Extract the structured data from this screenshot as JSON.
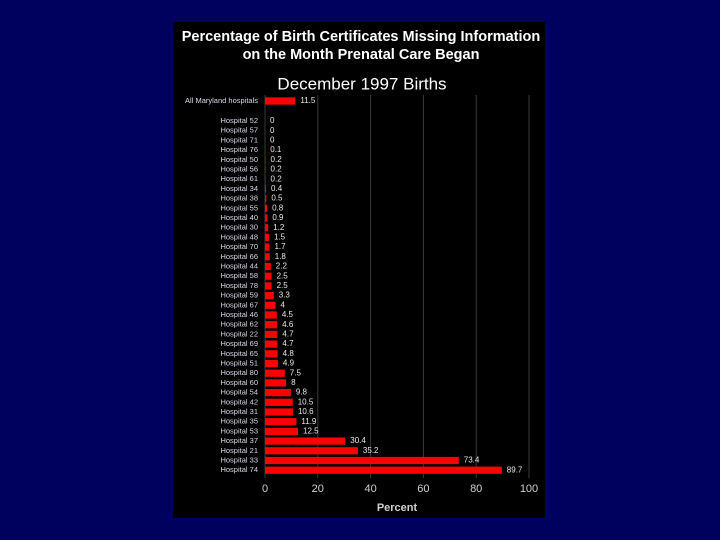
{
  "chart_data": {
    "type": "bar",
    "orientation": "horizontal",
    "title": "Percentage of Birth Certificates Missing Information on the Month Prenatal Care Began",
    "subtitle": "December 1997 Births",
    "x_label": "Percent",
    "categories": [
      "All Maryland hospitals",
      "Hospital 52",
      "Hospital 57",
      "Hospital 71",
      "Hospital 76",
      "Hospital 50",
      "Hospital 56",
      "Hospital 61",
      "Hospital 34",
      "Hospital 38",
      "Hospital 55",
      "Hospital 40",
      "Hospital 30",
      "Hospital 48",
      "Hospital 70",
      "Hospital 66",
      "Hospital 44",
      "Hospital 58",
      "Hospital 78",
      "Hospital 59",
      "Hospital 67",
      "Hospital 46",
      "Hospital 62",
      "Hospital 22",
      "Hospital 69",
      "Hospital 65",
      "Hospital 51",
      "Hospital 80",
      "Hospital 60",
      "Hospital 54",
      "Hospital 42",
      "Hospital 31",
      "Hospital 35",
      "Hospital 53",
      "Hospital 37",
      "Hospital 21",
      "Hospital 33",
      "Hospital 74"
    ],
    "values": [
      11.5,
      0,
      0,
      0,
      0.1,
      0.2,
      0.2,
      0.2,
      0.4,
      0.5,
      0.8,
      0.9,
      1.2,
      1.5,
      1.7,
      1.8,
      2.2,
      2.5,
      2.5,
      3.3,
      4,
      4.5,
      4.6,
      4.7,
      4.7,
      4.8,
      4.9,
      7.5,
      8,
      9.8,
      10.5,
      10.6,
      11.9,
      12.5,
      30.4,
      35.2,
      73.4,
      89.7
    ],
    "color": "#ff0000",
    "xlim": [
      0,
      100
    ],
    "xticks": [
      0,
      20,
      40,
      60,
      80,
      100
    ],
    "grid": true
  }
}
